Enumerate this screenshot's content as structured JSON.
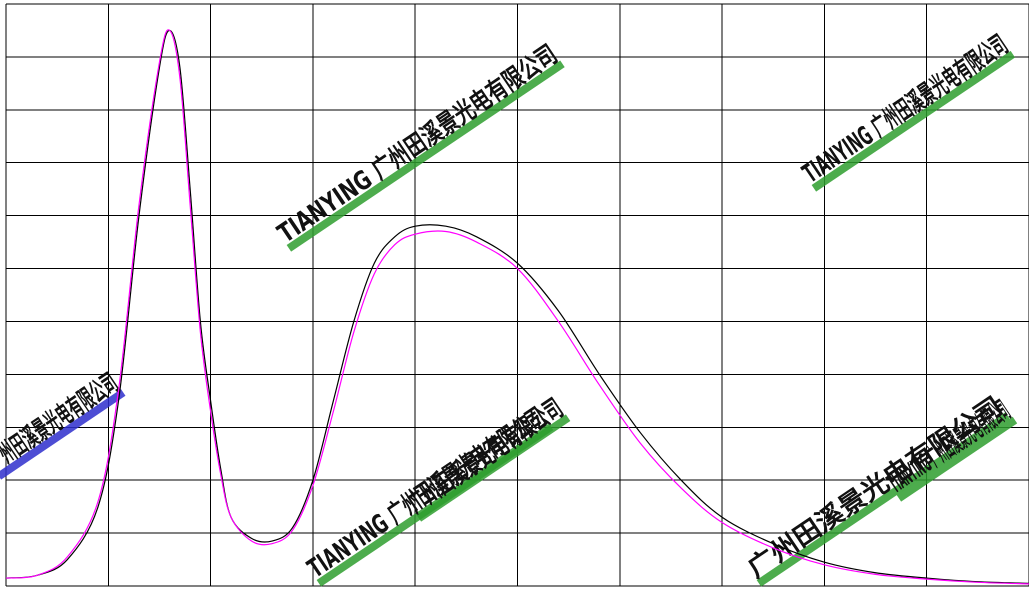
{
  "chart_data": {
    "type": "line",
    "title": "",
    "xlabel": "",
    "ylabel": "",
    "xlim": [
      0,
      10
    ],
    "ylim": [
      0,
      11
    ],
    "grid": true,
    "x_gridlines": [
      0,
      1,
      2,
      3,
      4,
      5,
      6,
      7,
      8,
      9,
      10
    ],
    "y_gridlines": [
      0,
      1,
      2,
      3,
      4,
      5,
      6,
      7,
      8,
      9,
      10,
      11
    ],
    "series": [
      {
        "color": "#000000",
        "x": [
          0,
          0.3,
          0.6,
          0.9,
          1.1,
          1.3,
          1.5,
          1.6,
          1.7,
          1.8,
          1.9,
          2.0,
          2.1,
          2.2,
          2.4,
          2.6,
          2.8,
          3.0,
          3.2,
          3.4,
          3.6,
          3.8,
          4.0,
          4.3,
          4.6,
          5.0,
          5.4,
          5.8,
          6.2,
          6.6,
          7.0,
          7.5,
          8.0,
          8.5,
          9.0,
          9.5,
          10.0
        ],
        "y": [
          0.15,
          0.2,
          0.5,
          1.5,
          3.5,
          7.0,
          9.8,
          10.5,
          9.8,
          7.5,
          5.0,
          3.5,
          2.2,
          1.3,
          0.9,
          0.85,
          1.1,
          2.0,
          3.5,
          5.0,
          6.1,
          6.6,
          6.8,
          6.8,
          6.6,
          6.1,
          5.2,
          4.0,
          2.9,
          2.0,
          1.3,
          0.8,
          0.45,
          0.25,
          0.15,
          0.08,
          0.05
        ]
      },
      {
        "color": "#ff00ff",
        "x": [
          0,
          0.3,
          0.6,
          0.9,
          1.1,
          1.3,
          1.5,
          1.6,
          1.7,
          1.8,
          1.9,
          2.0,
          2.1,
          2.2,
          2.4,
          2.6,
          2.8,
          3.0,
          3.2,
          3.4,
          3.6,
          3.8,
          4.0,
          4.3,
          4.6,
          5.0,
          5.4,
          5.8,
          6.2,
          6.6,
          7.0,
          7.5,
          8.0,
          8.5,
          9.0,
          9.5,
          10.0
        ],
        "y": [
          0.15,
          0.2,
          0.55,
          1.6,
          3.7,
          7.2,
          9.9,
          10.5,
          9.6,
          7.2,
          4.8,
          3.3,
          2.1,
          1.3,
          0.85,
          0.8,
          1.05,
          1.9,
          3.3,
          4.8,
          5.9,
          6.45,
          6.65,
          6.7,
          6.5,
          6.0,
          5.0,
          3.8,
          2.7,
          1.85,
          1.2,
          0.72,
          0.4,
          0.22,
          0.13,
          0.07,
          0.04
        ]
      }
    ]
  },
  "watermarks": [
    {
      "text": "TIANYING 广州田溪景光电有限公司",
      "color": "#2e9e2e"
    },
    {
      "text": "TIANYING 广州田溪景光电有限公司",
      "color": "#2e9e2e"
    },
    {
      "text": "TIANYING 广州田溪景光电有限公司",
      "color": "#2e9e2e"
    },
    {
      "text": "广州田溪景光电有限公司",
      "color": "#2e9e2e"
    },
    {
      "text": "广州田溪景光电有限公司",
      "color": "#2e9e2e"
    },
    {
      "text": "TIANYING 广州田溪景光电有限公司",
      "color": "#2e9e2e"
    },
    {
      "text": "广州田溪景光电有限公司",
      "color": "#2e2ecc"
    }
  ]
}
